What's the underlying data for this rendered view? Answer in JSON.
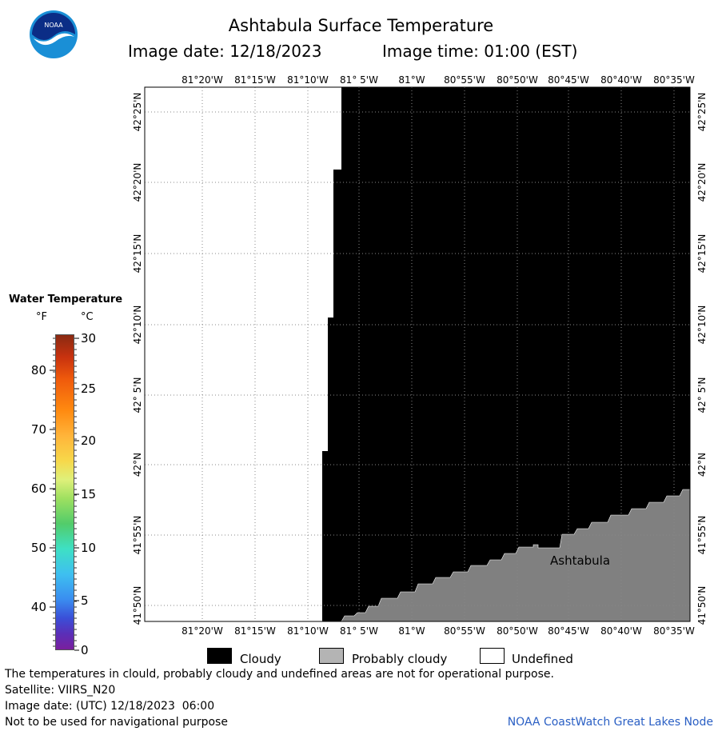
{
  "header": {
    "title": "Ashtabula Surface Temperature",
    "image_date": "Image date: 12/18/2023",
    "image_time": "Image time: 01:00 (EST)",
    "logo_text": "NOAA",
    "logo_colors": {
      "outer": "#1a8fd6",
      "inner": "#0b2d86",
      "bird": "#ffffff"
    }
  },
  "map": {
    "lon_labels": [
      "81°20'W",
      "81°15'W",
      "81°10'W",
      "81° 5'W",
      "81°W",
      "80°55'W",
      "80°50'W",
      "80°45'W",
      "80°40'W",
      "80°35'W"
    ],
    "lat_labels": [
      "42°25'N",
      "42°20'N",
      "42°15'N",
      "42°10'N",
      "42° 5'N",
      "42°N",
      "41°55'N",
      "41°50'N"
    ],
    "city": "Ashtabula",
    "colors": {
      "cloudy": "#000000",
      "probably_cloudy": "#808080",
      "undefined": "#ffffff"
    }
  },
  "legend": {
    "title": "Water Temperature",
    "unit_f": "°F",
    "unit_c": "°C",
    "f_ticks": [
      "80",
      "70",
      "60",
      "50",
      "40"
    ],
    "c_ticks": [
      "30",
      "25",
      "20",
      "15",
      "10",
      "5",
      "0"
    ]
  },
  "key": {
    "cloudy": "Cloudy",
    "probably_cloudy": "Probably cloudy",
    "undefined": "Undefined"
  },
  "footer": {
    "line1": "The temperatures in clould, probably cloudy and undefined areas are not for operational purpose.",
    "line2": "Satellite: VIIRS_N20",
    "line3": "Image date: (UTC) 12/18/2023  06:00",
    "line4": "Not to be used for navigational purpose",
    "credit": "NOAA CoastWatch Great Lakes Node"
  }
}
